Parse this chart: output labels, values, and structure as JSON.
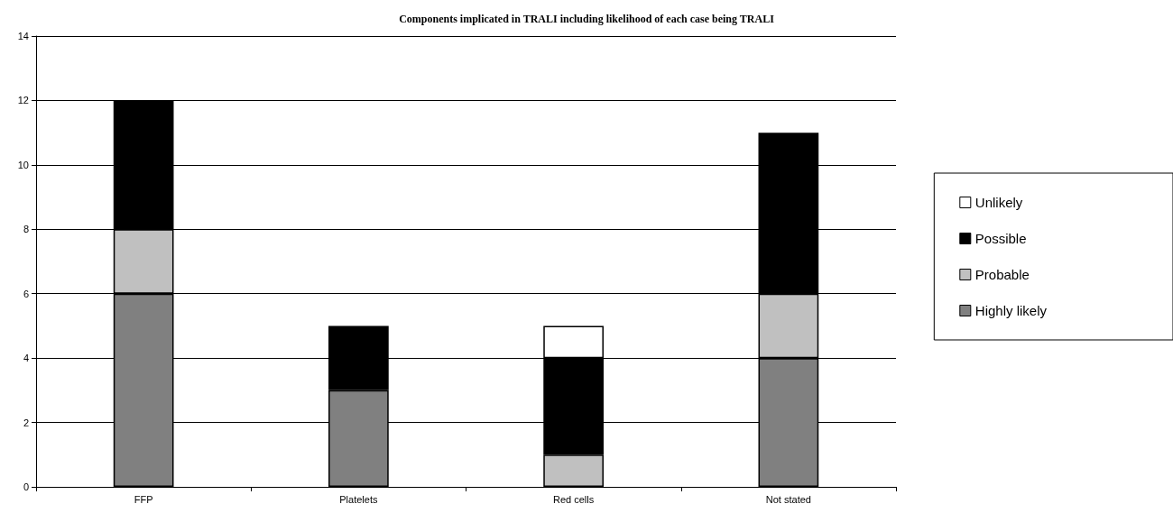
{
  "chart_data": {
    "type": "bar",
    "title": "Components implicated in TRALI including likelihood of each case being TRALI",
    "categories": [
      "FFP",
      "Platelets",
      "Red cells",
      "Not stated"
    ],
    "series": [
      {
        "name": "Highly likely",
        "color": "#808080",
        "values": [
          6,
          3,
          0,
          4
        ]
      },
      {
        "name": "Probable",
        "color": "#c0c0c0",
        "values": [
          2,
          0,
          1,
          2
        ]
      },
      {
        "name": "Possible",
        "color": "#000000",
        "values": [
          4,
          2,
          3,
          5
        ]
      },
      {
        "name": "Unlikely",
        "color": "#ffffff",
        "values": [
          0,
          0,
          1,
          0
        ]
      }
    ],
    "stacked": true,
    "ylim": [
      0,
      14
    ],
    "yticks": [
      0,
      2,
      4,
      6,
      8,
      10,
      12,
      14
    ],
    "grid": "y",
    "legend": "right"
  }
}
